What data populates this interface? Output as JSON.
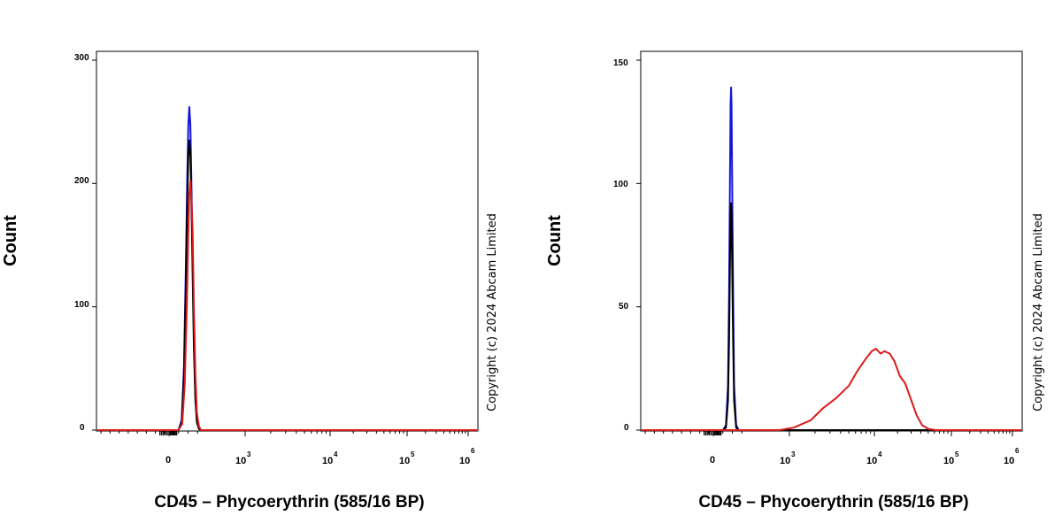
{
  "chart_data": [
    {
      "type": "line",
      "panel": "left",
      "ylabel": "Count",
      "xlabel": "CD45 – Phycoerythrin (585/16 BP)",
      "ylim": [
        0,
        300
      ],
      "yticks": [
        "0",
        "100",
        "200",
        "300"
      ],
      "xticks": [
        {
          "base": "0",
          "exp": ""
        },
        {
          "base": "10",
          "exp": "3"
        },
        {
          "base": "10",
          "exp": "4"
        },
        {
          "base": "10",
          "exp": "5"
        },
        {
          "base": "10",
          "exp": "6"
        }
      ],
      "copyright": "Copyright (c) 2024 Abcam Limited",
      "series": [
        {
          "color": "#1515d8",
          "peak": 262,
          "values": [
            [
              0.37,
              0
            ],
            [
              0.5,
              8
            ],
            [
              0.59,
              52
            ],
            [
              0.66,
              128
            ],
            [
              0.72,
              205
            ],
            [
              0.76,
              248
            ],
            [
              0.8,
              262
            ],
            [
              0.84,
              248
            ],
            [
              0.88,
              205
            ],
            [
              0.93,
              138
            ],
            [
              0.98,
              75
            ],
            [
              1.04,
              28
            ],
            [
              1.1,
              8
            ],
            [
              1.18,
              1
            ],
            [
              1.26,
              0
            ]
          ]
        },
        {
          "color": "#000000",
          "peak": 235,
          "values": [
            [
              0.37,
              0
            ],
            [
              0.5,
              6
            ],
            [
              0.59,
              45
            ],
            [
              0.66,
              115
            ],
            [
              0.72,
              185
            ],
            [
              0.76,
              222
            ],
            [
              0.8,
              235
            ],
            [
              0.84,
              224
            ],
            [
              0.88,
              190
            ],
            [
              0.93,
              125
            ],
            [
              0.98,
              66
            ],
            [
              1.04,
              24
            ],
            [
              1.1,
              6
            ],
            [
              1.18,
              1
            ],
            [
              1.26,
              0
            ]
          ]
        },
        {
          "color": "#dd1a1a",
          "peak": 202,
          "values": [
            [
              0.37,
              0
            ],
            [
              0.52,
              5
            ],
            [
              0.62,
              38
            ],
            [
              0.7,
              100
            ],
            [
              0.76,
              160
            ],
            [
              0.8,
              190
            ],
            [
              0.84,
              202
            ],
            [
              0.88,
              190
            ],
            [
              0.93,
              160
            ],
            [
              0.98,
              100
            ],
            [
              1.04,
              45
            ],
            [
              1.1,
              14
            ],
            [
              1.18,
              3
            ],
            [
              1.26,
              0
            ]
          ]
        }
      ]
    },
    {
      "type": "line",
      "panel": "right",
      "ylabel": "Count",
      "xlabel": "CD45 – Phycoerythrin (585/16 BP)",
      "ylim": [
        0,
        150
      ],
      "yticks": [
        "0",
        "50",
        "100",
        "150"
      ],
      "xticks": [
        {
          "base": "0",
          "exp": ""
        },
        {
          "base": "10",
          "exp": "3"
        },
        {
          "base": "10",
          "exp": "4"
        },
        {
          "base": "10",
          "exp": "5"
        },
        {
          "base": "10",
          "exp": "6"
        }
      ],
      "copyright": "Copyright (c) 2024 Abcam Limited",
      "series": [
        {
          "color": "#1515d8",
          "peak": 139,
          "values": [
            [
              0.38,
              0
            ],
            [
              0.5,
              2
            ],
            [
              0.58,
              18
            ],
            [
              0.62,
              55
            ],
            [
              0.66,
              105
            ],
            [
              0.68,
              132
            ],
            [
              0.7,
              139
            ],
            [
              0.72,
              132
            ],
            [
              0.74,
              105
            ],
            [
              0.78,
              55
            ],
            [
              0.82,
              18
            ],
            [
              0.9,
              2
            ],
            [
              1.0,
              0
            ]
          ]
        },
        {
          "color": "#000000",
          "peak": 92,
          "values": [
            [
              0.38,
              0
            ],
            [
              0.5,
              1
            ],
            [
              0.58,
              12
            ],
            [
              0.62,
              36
            ],
            [
              0.66,
              70
            ],
            [
              0.68,
              87
            ],
            [
              0.7,
              92
            ],
            [
              0.72,
              87
            ],
            [
              0.74,
              70
            ],
            [
              0.78,
              36
            ],
            [
              0.82,
              12
            ],
            [
              0.9,
              1
            ],
            [
              1.0,
              0
            ]
          ]
        },
        {
          "color": "#dd1a1a",
          "peak": 33,
          "values": [
            [
              0.4,
              0
            ],
            [
              2.6,
              0
            ],
            [
              3.05,
              1
            ],
            [
              3.25,
              4
            ],
            [
              3.4,
              9
            ],
            [
              3.55,
              13
            ],
            [
              3.7,
              18
            ],
            [
              3.8,
              24
            ],
            [
              3.9,
              29
            ],
            [
              3.97,
              32
            ],
            [
              4.02,
              33
            ],
            [
              4.08,
              31
            ],
            [
              4.13,
              32
            ],
            [
              4.2,
              31
            ],
            [
              4.26,
              28
            ],
            [
              4.33,
              22
            ],
            [
              4.4,
              19
            ],
            [
              4.48,
              12
            ],
            [
              4.55,
              6
            ],
            [
              4.62,
              2
            ],
            [
              4.7,
              0.5
            ],
            [
              4.8,
              0
            ],
            [
              6.0,
              0
            ]
          ]
        }
      ]
    }
  ]
}
